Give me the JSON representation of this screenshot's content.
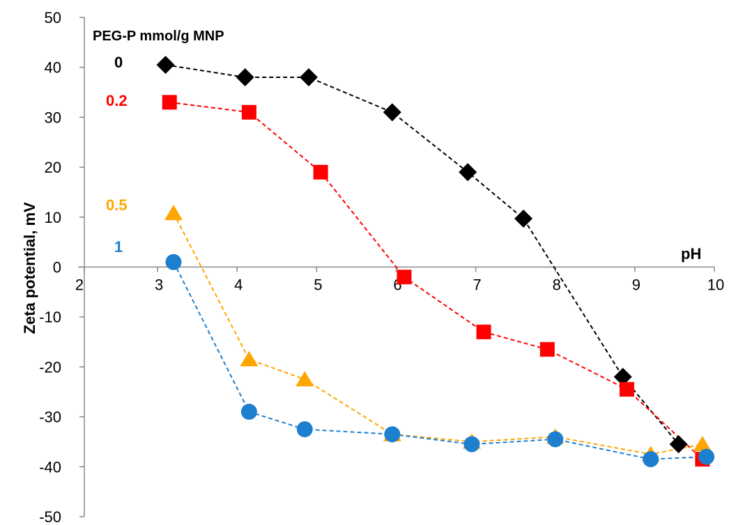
{
  "chart_data": {
    "type": "line",
    "ylabel": "Zeta potential, mV",
    "xlabel": "pH",
    "xlim": [
      2,
      10
    ],
    "ylim": [
      -50,
      50
    ],
    "x_ticks": [
      "2",
      "3",
      "4",
      "5",
      "6",
      "7",
      "8",
      "9",
      "10"
    ],
    "y_ticks": [
      "50",
      "40",
      "30",
      "20",
      "10",
      "0",
      "-10",
      "-20",
      "-30",
      "-40",
      "-50"
    ],
    "legend_title": "PEG-P mmol/g MNP",
    "grid": false,
    "series": [
      {
        "name": "0",
        "marker": "diamond",
        "color": "#000000",
        "x": [
          3.1,
          4.1,
          4.9,
          5.95,
          6.9,
          7.6,
          8.85,
          9.55
        ],
        "y": [
          40.5,
          38,
          38,
          31,
          19,
          9.7,
          -22,
          -35.5
        ]
      },
      {
        "name": "0.2",
        "marker": "square",
        "color": "#ff0000",
        "x": [
          3.15,
          4.15,
          5.05,
          6.1,
          7.1,
          7.9,
          8.9,
          9.85
        ],
        "y": [
          33,
          31,
          19,
          -2,
          -13,
          -16.5,
          -24.5,
          -38.5
        ]
      },
      {
        "name": "0.5",
        "marker": "triangle",
        "color": "#ffa500",
        "x": [
          3.2,
          4.15,
          4.85,
          5.95,
          6.95,
          8.0,
          9.2,
          9.85
        ],
        "y": [
          10.8,
          -18.5,
          -22.5,
          -33.5,
          -35,
          -34,
          -37.5,
          -35.5
        ]
      },
      {
        "name": "1",
        "marker": "circle",
        "color": "#1e7fce",
        "x": [
          3.2,
          4.15,
          4.85,
          5.95,
          6.95,
          8.0,
          9.2,
          9.9
        ],
        "y": [
          1,
          -29,
          -32.5,
          -33.5,
          -35.5,
          -34.5,
          -38.5,
          -38
        ]
      }
    ]
  }
}
